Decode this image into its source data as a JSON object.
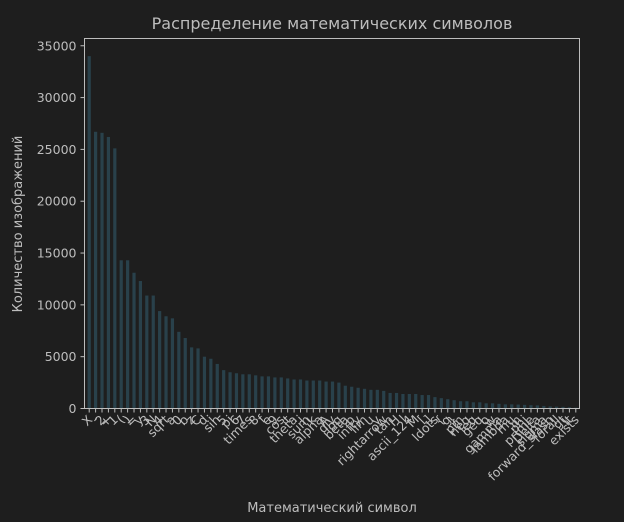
{
  "chart_data": {
    "type": "bar",
    "title": "Распределение математических символов",
    "xlabel": "Математический символ",
    "ylabel": "Количество изображений",
    "ylim": [
      0,
      35700
    ],
    "yticks": [
      0,
      5000,
      10000,
      15000,
      20000,
      25000,
      30000,
      35000
    ],
    "grid": false,
    "legend": "none",
    "colors": {
      "bar": "#29414b",
      "axis": "#bdbdbd",
      "background": "#1e1e1e"
    },
    "categories": [
      "X",
      "-",
      "2",
      "+",
      "1",
      "(",
      ")",
      "=",
      "y",
      "3",
      "N",
      "4",
      "sqrt",
      "a",
      "0",
      "b",
      "z",
      "C",
      "d",
      "i",
      "sin",
      "5",
      "pi",
      "6",
      "7",
      "times",
      "8",
      "f",
      "e",
      "9",
      "cos",
      "t",
      "theta",
      "j",
      "sum",
      "k",
      "alpha",
      "A",
      "div",
      "log",
      "beta",
      "p",
      "infty",
      "lim",
      "u",
      "v",
      "rightarrow",
      "tan",
      "H",
      "l",
      "ascii_124",
      "M",
      "[",
      "]",
      "ldots",
      "{",
      "g",
      "}",
      "pm",
      "neq",
      "leq",
      "geq",
      "o",
      "w",
      "gamma",
      "lambda",
      "mu",
      "in",
      "phi",
      "prime",
      "Delta",
      "sigma",
      "forward_slash",
      "forall",
      "gt",
      "lt",
      "exists"
    ],
    "values": [
      34000,
      26700,
      26600,
      26200,
      25100,
      14300,
      14300,
      13100,
      12300,
      10900,
      10900,
      9400,
      8900,
      8700,
      7400,
      6800,
      5900,
      5800,
      5000,
      4800,
      4300,
      3700,
      3500,
      3400,
      3300,
      3300,
      3200,
      3100,
      3100,
      3000,
      3000,
      2900,
      2800,
      2800,
      2700,
      2700,
      2700,
      2600,
      2600,
      2500,
      2200,
      2100,
      2000,
      1900,
      1800,
      1800,
      1700,
      1500,
      1500,
      1400,
      1400,
      1400,
      1300,
      1300,
      1100,
      1000,
      900,
      800,
      700,
      700,
      600,
      600,
      500,
      500,
      450,
      400,
      400,
      380,
      350,
      320,
      300,
      250,
      200,
      180,
      160,
      120,
      80
    ],
    "shown_labels": [
      "X",
      "-",
      "2",
      "+",
      "1",
      "(",
      ")",
      "=",
      "y",
      "3",
      "N",
      "4",
      "sqrt",
      "a",
      "0",
      "b",
      "z",
      "C",
      "d",
      "i",
      "sin",
      "5",
      "pi",
      "6",
      "7",
      "times",
      "8",
      "f",
      "e",
      "9",
      "cos",
      "t",
      "theta",
      "j",
      "sum",
      "k",
      "alpha",
      "A",
      "div",
      "log",
      "beta",
      "p",
      "infty",
      "lim",
      "u",
      "v",
      "rightarrow",
      "tan",
      "H",
      "l",
      "ascii_124",
      "M",
      "[",
      "]",
      "ldots",
      "{",
      "g",
      "}",
      "pm",
      "neq",
      "leq",
      "geq",
      "o",
      "w",
      "gamma",
      "lambda",
      "mu",
      "in",
      "phi",
      "prime",
      "Delta",
      "sigma",
      "forward_slash",
      "forall",
      "gt",
      "lt",
      "exists"
    ]
  }
}
